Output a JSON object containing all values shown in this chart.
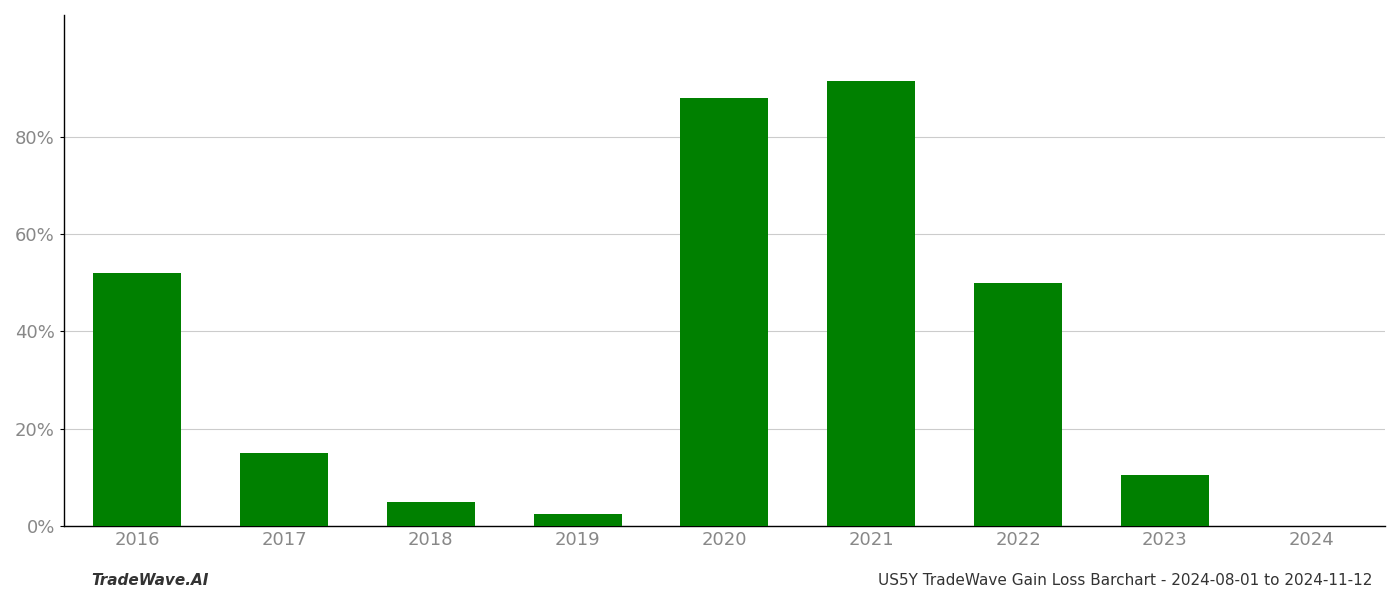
{
  "categories": [
    "2016",
    "2017",
    "2018",
    "2019",
    "2020",
    "2021",
    "2022",
    "2023",
    "2024"
  ],
  "values": [
    0.52,
    0.15,
    0.05,
    0.025,
    0.88,
    0.915,
    0.5,
    0.105,
    0.0
  ],
  "bar_color": "#008000",
  "background_color": "#ffffff",
  "grid_color": "#cccccc",
  "ylabel": "",
  "xlabel": "",
  "ylim": [
    0,
    1.05
  ],
  "yticks": [
    0.0,
    0.2,
    0.4,
    0.6,
    0.8
  ],
  "ytick_labels": [
    "0%",
    "20%",
    "40%",
    "60%",
    "80%"
  ],
  "footer_left": "TradeWave.AI",
  "footer_right": "US5Y TradeWave Gain Loss Barchart - 2024-08-01 to 2024-11-12",
  "tick_fontsize": 13,
  "footer_fontsize": 11,
  "bar_width": 0.6,
  "spine_color": "#000000",
  "tick_color": "#888888"
}
